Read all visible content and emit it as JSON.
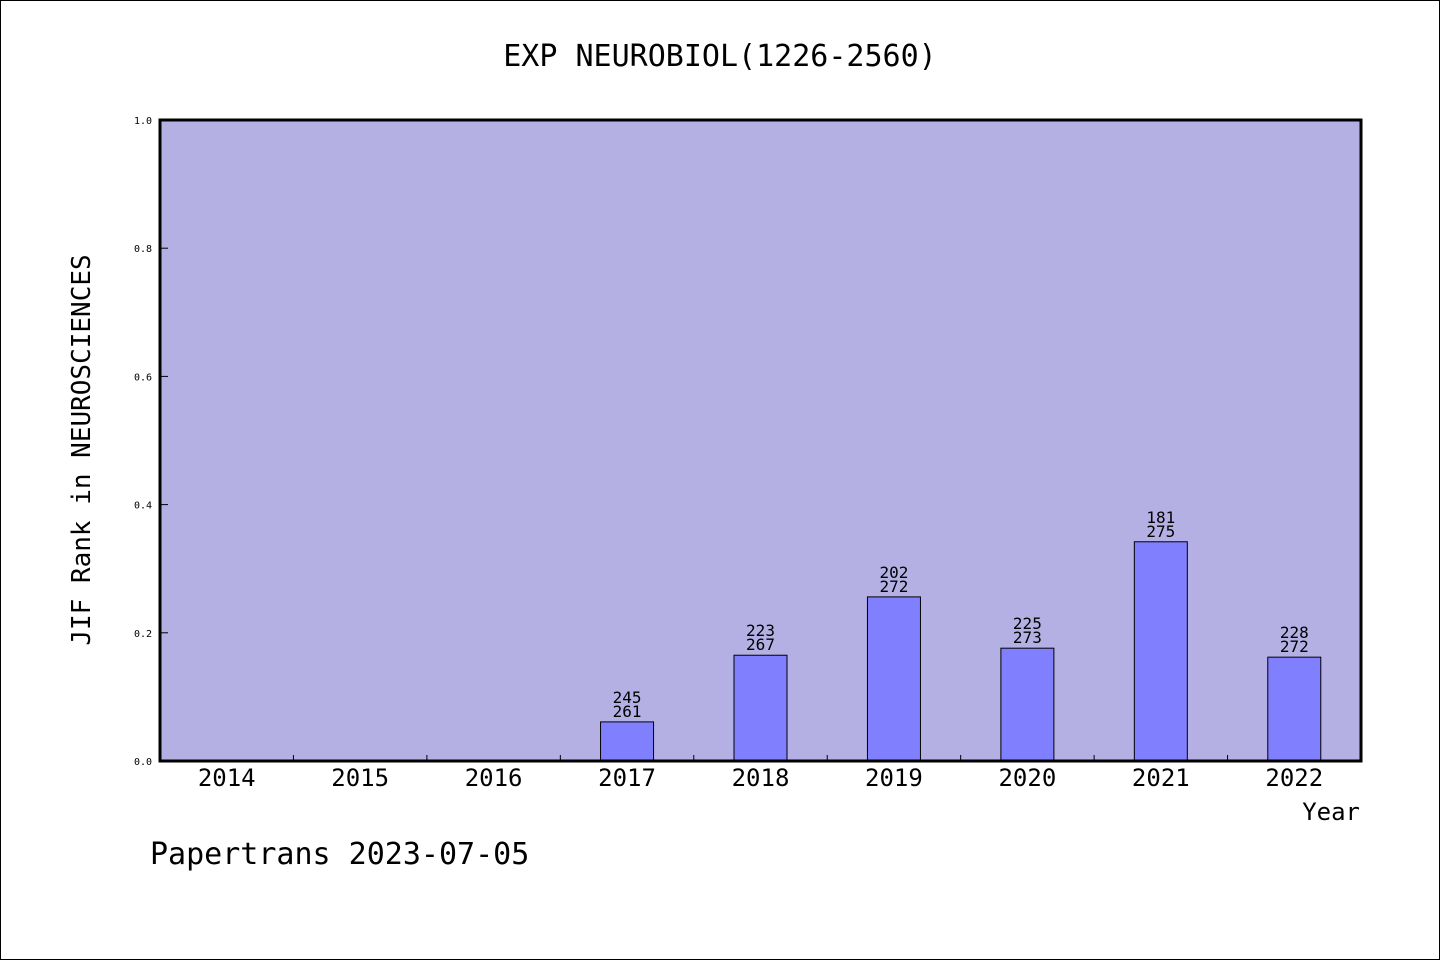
{
  "chart_data": {
    "type": "bar",
    "title": "EXP NEUROBIOL(1226-2560)",
    "xlabel": "Year",
    "ylabel": "JIF Rank in NEUROSCIENCES",
    "categories": [
      "2014",
      "2015",
      "2016",
      "2017",
      "2018",
      "2019",
      "2020",
      "2021",
      "2022"
    ],
    "values": [
      null,
      null,
      null,
      0.061,
      0.165,
      0.256,
      0.176,
      0.342,
      0.162
    ],
    "rank": [
      null,
      null,
      null,
      "245",
      "223",
      "202",
      "225",
      "181",
      "228"
    ],
    "total": [
      null,
      null,
      null,
      "261",
      "267",
      "272",
      "273",
      "275",
      "272"
    ],
    "yticks": [
      "0.0",
      "0.2",
      "0.4",
      "0.6",
      "0.8",
      "1.0"
    ],
    "ylim": [
      0,
      1
    ],
    "grid": false,
    "colors": {
      "plot_background": "#b5b0e3",
      "bar_fill": "#8080ff",
      "axis": "#000000"
    }
  },
  "footer": "Papertrans 2023-07-05"
}
